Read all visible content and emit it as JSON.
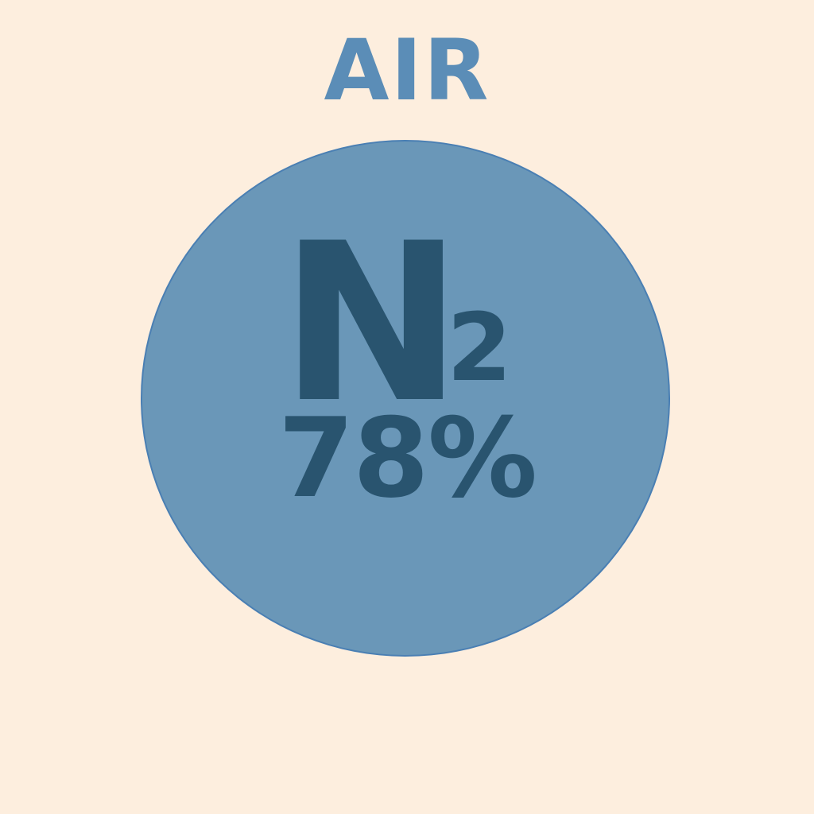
{
  "title": "AIR",
  "gas": {
    "symbol": "N",
    "subscript": "2",
    "percentage": "78%"
  },
  "colors": {
    "background": "#fdeede",
    "title": "#5b8db7",
    "circle_fill": "#6a97b8",
    "circle_border": "#4a7fb3",
    "text": "#29546f"
  }
}
